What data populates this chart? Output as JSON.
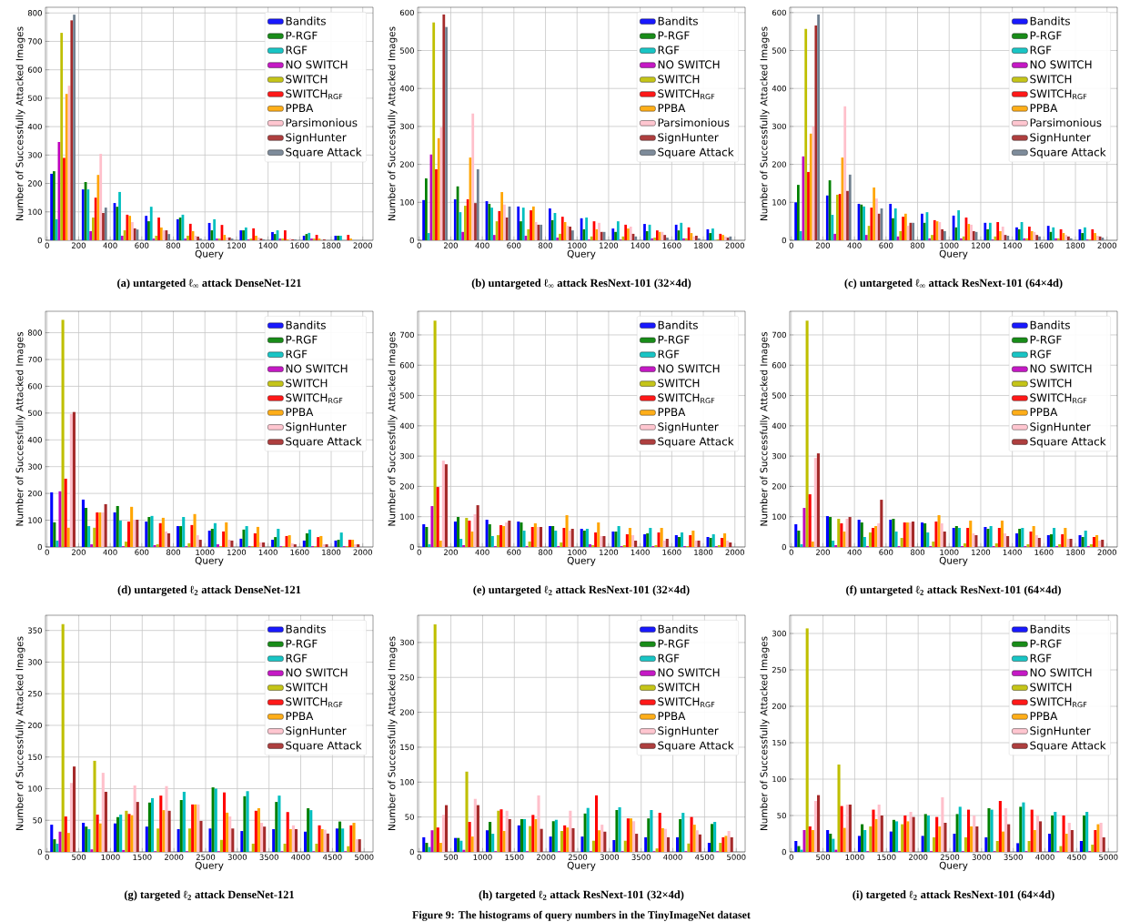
{
  "chart_data": [
    {
      "type": "histogram",
      "title": "(a) untargeted ℓ$_{∞}$ attack DenseNet-121",
      "xlabel": "Query",
      "ylabel": "Number of Successfully Attacked Images",
      "bins": [
        0,
        200,
        400,
        600,
        800,
        1000,
        1200,
        1400,
        1600,
        1800,
        2000
      ],
      "xlim": [
        -10,
        2065
      ],
      "ylim": [
        0,
        820
      ],
      "xticks": [
        0,
        200,
        400,
        600,
        800,
        1000,
        1200,
        1400,
        1600,
        1800,
        2000
      ],
      "yticks": [
        0,
        100,
        200,
        300,
        400,
        500,
        600,
        700,
        800
      ],
      "grid": true,
      "legend": "top right",
      "series": [
        {
          "name": "Bandits",
          "color": "#0000ff",
          "values": [
            234,
            179,
            131,
            86,
            74,
            61,
            35,
            29,
            16,
            16
          ]
        },
        {
          "name": "P-RGF",
          "color": "#008000",
          "values": [
            243,
            205,
            118,
            67,
            80,
            35,
            35,
            22,
            22,
            16
          ]
        },
        {
          "name": "RGF",
          "color": "#00bfbf",
          "values": [
            74,
            179,
            170,
            118,
            90,
            74,
            45,
            35,
            26,
            16
          ]
        },
        {
          "name": "NO SWITCH",
          "color": "#bf00bf",
          "values": [
            346,
            32,
            16,
            6,
            6,
            6,
            3,
            6,
            6,
            0
          ]
        },
        {
          "name": "SWITCH",
          "color": "#bfbf00",
          "values": [
            730,
            80,
            35,
            16,
            16,
            6,
            6,
            6,
            6,
            0
          ]
        },
        {
          "name": "SWITCH$_{RGF}$",
          "color": "#ff0000",
          "values": [
            290,
            150,
            90,
            80,
            58,
            54,
            42,
            35,
            19,
            19
          ]
        },
        {
          "name": "PPBA",
          "color": "#ffa500",
          "values": [
            515,
            230,
            86,
            45,
            32,
            19,
            16,
            3,
            6,
            6
          ]
        },
        {
          "name": "Parsimonious",
          "color": "#ffc0cb",
          "values": [
            544,
            304,
            64,
            35,
            16,
            10,
            10,
            6,
            null,
            0
          ]
        },
        {
          "name": "SignHunter",
          "color": "#a52a2a",
          "values": [
            774,
            96,
            42,
            35,
            13,
            10,
            6,
            3,
            3,
            0
          ]
        },
        {
          "name": "Square Attack",
          "color": "#708090",
          "values": [
            794,
            115,
            38,
            22,
            6,
            6,
            3,
            3,
            0,
            0
          ]
        }
      ]
    },
    {
      "type": "histogram",
      "title": "(b) untargeted ℓ$_{∞}$ attack ResNext-101 (32×4d)",
      "xlabel": "Query",
      "ylabel": "Number of Successfully Attacked Images",
      "bins": [
        0,
        200,
        400,
        600,
        800,
        1000,
        1200,
        1400,
        1600,
        1800,
        2000
      ],
      "xlim": [
        -10,
        2065
      ],
      "ylim": [
        0,
        614
      ],
      "xticks": [
        0,
        200,
        400,
        600,
        800,
        1000,
        1200,
        1400,
        1600,
        1800,
        2000
      ],
      "yticks": [
        0,
        100,
        200,
        300,
        400,
        500,
        600
      ],
      "grid": true,
      "legend": "top right",
      "series": [
        {
          "name": "Bandits",
          "color": "#0000ff",
          "values": [
            106,
            108,
            103,
            89,
            84,
            58,
            31,
            43,
            41,
            29
          ]
        },
        {
          "name": "P-RGF",
          "color": "#008000",
          "values": [
            163,
            142,
            96,
            50,
            53,
            29,
            22,
            24,
            26,
            19
          ]
        },
        {
          "name": "RGF",
          "color": "#00bfbf",
          "values": [
            19,
            74,
            86,
            86,
            72,
            60,
            50,
            41,
            46,
            31
          ]
        },
        {
          "name": "NO SWITCH",
          "color": "#bf00bf",
          "values": [
            226,
            22,
            14,
            12,
            7,
            2,
            2,
            5,
            5,
            0
          ]
        },
        {
          "name": "SWITCH",
          "color": "#bfbf00",
          "values": [
            574,
            91,
            50,
            29,
            17,
            10,
            10,
            7,
            5,
            2
          ]
        },
        {
          "name": "SWITCH$_{RGF}$",
          "color": "#ff0000",
          "values": [
            187,
            108,
            77,
            79,
            62,
            50,
            41,
            26,
            34,
            17
          ]
        },
        {
          "name": "PPBA",
          "color": "#ffa500",
          "values": [
            269,
            218,
            127,
            89,
            48,
            29,
            31,
            22,
            19,
            14
          ]
        },
        {
          "name": "Parsimonious",
          "color": "#ffc0cb",
          "values": [
            298,
            334,
            94,
            48,
            38,
            46,
            36,
            22,
            10,
            10
          ]
        },
        {
          "name": "SignHunter",
          "color": "#a52a2a",
          "values": [
            595,
            98,
            60,
            41,
            36,
            22,
            17,
            14,
            12,
            7
          ]
        },
        {
          "name": "Square Attack",
          "color": "#708090",
          "values": [
            562,
            187,
            89,
            41,
            26,
            22,
            10,
            7,
            5,
            10
          ]
        }
      ]
    },
    {
      "type": "histogram",
      "title": "(c) untargeted ℓ$_{∞}$ attack ResNext-101 (64×4d)",
      "xlabel": "Query",
      "ylabel": "Number of Successfully Attacked Images",
      "bins": [
        0,
        200,
        400,
        600,
        800,
        1000,
        1200,
        1400,
        1600,
        1800,
        2000
      ],
      "xlim": [
        -10,
        2065
      ],
      "ylim": [
        0,
        614
      ],
      "xticks": [
        0,
        200,
        400,
        600,
        800,
        1000,
        1200,
        1400,
        1600,
        1800,
        2000
      ],
      "yticks": [
        0,
        100,
        200,
        300,
        400,
        500,
        600
      ],
      "grid": true,
      "legend": "top right",
      "series": [
        {
          "name": "Bandits",
          "color": "#0000ff",
          "values": [
            100,
            118,
            96,
            96,
            70,
            65,
            46,
            34,
            38,
            29
          ]
        },
        {
          "name": "P-RGF",
          "color": "#008000",
          "values": [
            146,
            158,
            94,
            58,
            46,
            34,
            29,
            29,
            22,
            19
          ]
        },
        {
          "name": "RGF",
          "color": "#00bfbf",
          "values": [
            24,
            67,
            89,
            84,
            74,
            79,
            46,
            48,
            34,
            34
          ]
        },
        {
          "name": "NO SWITCH",
          "color": "#bf00bf",
          "values": [
            221,
            17,
            14,
            10,
            5,
            5,
            2,
            5,
            5,
            2
          ]
        },
        {
          "name": "SWITCH",
          "color": "#bfbf00",
          "values": [
            557,
            120,
            38,
            24,
            14,
            10,
            10,
            5,
            5,
            2
          ]
        },
        {
          "name": "SWITCH$_{RGF}$",
          "color": "#ff0000",
          "values": [
            180,
            122,
            86,
            62,
            53,
            60,
            48,
            36,
            29,
            29
          ]
        },
        {
          "name": "PPBA",
          "color": "#ffa500",
          "values": [
            281,
            218,
            139,
            70,
            50,
            43,
            24,
            24,
            19,
            19
          ]
        },
        {
          "name": "Parsimonious",
          "color": "#ffc0cb",
          "values": [
            300,
            353,
            110,
            38,
            48,
            41,
            36,
            22,
            14,
            12
          ]
        },
        {
          "name": "SignHunter",
          "color": "#a52a2a",
          "values": [
            566,
            130,
            70,
            46,
            29,
            24,
            14,
            14,
            10,
            10
          ]
        },
        {
          "name": "Square Attack",
          "color": "#708090",
          "values": [
            595,
            173,
            84,
            46,
            24,
            22,
            12,
            10,
            5,
            7
          ]
        }
      ]
    },
    {
      "type": "histogram",
      "title": "(d) untargeted ℓ$_{2}$ attack DenseNet-121",
      "xlabel": "Query",
      "ylabel": "Number of Successfully Attacked Images",
      "bins": [
        0,
        200,
        400,
        600,
        800,
        1000,
        1200,
        1400,
        1600,
        1800,
        2000
      ],
      "xlim": [
        -10,
        2065
      ],
      "ylim": [
        0,
        880
      ],
      "xticks": [
        0,
        200,
        400,
        600,
        800,
        1000,
        1200,
        1400,
        1600,
        1800,
        2000
      ],
      "yticks": [
        0,
        100,
        200,
        300,
        400,
        500,
        600,
        700,
        800
      ],
      "grid": true,
      "legend": "top right",
      "series": [
        {
          "name": "Bandits",
          "color": "#0000ff",
          "values": [
            204,
            177,
            129,
            95,
            78,
            61,
            31,
            27,
            24,
            24
          ]
        },
        {
          "name": "P-RGF",
          "color": "#008000",
          "values": [
            92,
            146,
            153,
            112,
            78,
            68,
            65,
            37,
            51,
            27
          ]
        },
        {
          "name": "RGF",
          "color": "#00bfbf",
          "values": [
            24,
            78,
            99,
            116,
            112,
            89,
            78,
            68,
            65,
            54
          ]
        },
        {
          "name": "NO SWITCH",
          "color": "#bf00bf",
          "values": [
            208,
            10,
            3,
            7,
            3,
            10,
            3,
            3,
            3,
            3
          ]
        },
        {
          "name": "SWITCH",
          "color": "#bfbf00",
          "values": [
            848,
            72,
            20,
            10,
            14,
            3,
            3,
            3,
            3,
            3
          ]
        },
        {
          "name": "SWITCH$_{RGF}$",
          "color": "#ff0000",
          "values": [
            255,
            129,
            95,
            89,
            82,
            58,
            51,
            41,
            37,
            27
          ]
        },
        {
          "name": "PPBA",
          "color": "#ffa500",
          "values": [
            72,
            129,
            150,
            109,
            123,
            92,
            75,
            44,
            41,
            27
          ]
        },
        {
          "name": "SignHunter",
          "color": "#ffc0cb",
          "values": [
            497,
            129,
            102,
            58,
            44,
            27,
            17,
            14,
            10,
            10
          ]
        },
        {
          "name": "Square Attack",
          "color": "#a52a2a",
          "values": [
            504,
            160,
            102,
            51,
            27,
            24,
            17,
            10,
            10,
            10
          ]
        }
      ]
    },
    {
      "type": "histogram",
      "title": "(e) untargeted ℓ$_{2}$ attack ResNext-101 (32×4d)",
      "xlabel": "Query",
      "ylabel": "Number of Successfully Attacked Images",
      "bins": [
        0,
        200,
        400,
        600,
        800,
        1000,
        1200,
        1400,
        1600,
        1800,
        2000
      ],
      "xlim": [
        -10,
        2065
      ],
      "ylim": [
        0,
        778
      ],
      "xticks": [
        0,
        200,
        400,
        600,
        800,
        1000,
        1200,
        1400,
        1600,
        1800,
        2000
      ],
      "yticks": [
        0,
        100,
        200,
        300,
        400,
        500,
        600,
        700
      ],
      "grid": true,
      "legend": "top right",
      "series": [
        {
          "name": "Bandits",
          "color": "#0000ff",
          "values": [
            75,
            84,
            90,
            84,
            69,
            60,
            51,
            42,
            39,
            33
          ]
        },
        {
          "name": "P-RGF",
          "color": "#008000",
          "values": [
            66,
            99,
            75,
            81,
            69,
            54,
            51,
            45,
            33,
            30
          ]
        },
        {
          "name": "RGF",
          "color": "#00bfbf",
          "values": [
            9,
            27,
            36,
            54,
            54,
            60,
            69,
            63,
            48,
            42
          ]
        },
        {
          "name": "NO SWITCH",
          "color": "#bf00bf",
          "values": [
            135,
            6,
            3,
            3,
            3,
            9,
            3,
            3,
            3,
            3
          ]
        },
        {
          "name": "SWITCH",
          "color": "#bfbf00",
          "values": [
            747,
            96,
            39,
            18,
            15,
            6,
            6,
            6,
            3,
            6
          ]
        },
        {
          "name": "SWITCH$_{RGF}$",
          "color": "#ff0000",
          "values": [
            198,
            87,
            72,
            66,
            63,
            48,
            42,
            48,
            39,
            30
          ]
        },
        {
          "name": "PPBA",
          "color": "#ffa500",
          "values": [
            21,
            51,
            69,
            78,
            105,
            81,
            63,
            63,
            54,
            45
          ]
        },
        {
          "name": "SignHunter",
          "color": "#ffc0cb",
          "values": [
            285,
            108,
            81,
            66,
            54,
            36,
            39,
            21,
            21,
            21
          ]
        },
        {
          "name": "Square Attack",
          "color": "#a52a2a",
          "values": [
            273,
            138,
            87,
            66,
            60,
            36,
            21,
            27,
            21,
            15
          ]
        }
      ]
    },
    {
      "type": "histogram",
      "title": "(f) untargeted ℓ$_{2}$ attack ResNext-101 (64×4d)",
      "xlabel": "Query",
      "ylabel": "Number of Successfully Attacked Images",
      "bins": [
        0,
        200,
        400,
        600,
        800,
        1000,
        1200,
        1400,
        1600,
        1800,
        2000
      ],
      "xlim": [
        -10,
        2065
      ],
      "ylim": [
        0,
        778
      ],
      "xticks": [
        0,
        200,
        400,
        600,
        800,
        1000,
        1200,
        1400,
        1600,
        1800,
        2000
      ],
      "yticks": [
        0,
        100,
        200,
        300,
        400,
        500,
        600,
        700
      ],
      "grid": true,
      "legend": "top right",
      "series": [
        {
          "name": "Bandits",
          "color": "#0000ff",
          "values": [
            75,
            102,
            90,
            90,
            81,
            63,
            66,
            45,
            39,
            39
          ]
        },
        {
          "name": "P-RGF",
          "color": "#008000",
          "values": [
            54,
            99,
            81,
            93,
            78,
            69,
            60,
            60,
            42,
            33
          ]
        },
        {
          "name": "RGF",
          "color": "#00bfbf",
          "values": [
            9,
            21,
            33,
            51,
            48,
            63,
            69,
            63,
            63,
            54
          ]
        },
        {
          "name": "NO SWITCH",
          "color": "#bf00bf",
          "values": [
            129,
            6,
            3,
            3,
            3,
            3,
            3,
            3,
            3,
            3
          ]
        },
        {
          "name": "SWITCH",
          "color": "#bfbf00",
          "values": [
            747,
            93,
            48,
            30,
            18,
            12,
            12,
            9,
            9,
            9
          ]
        },
        {
          "name": "SWITCH$_{RGF}$",
          "color": "#ff0000",
          "values": [
            174,
            78,
            63,
            81,
            84,
            63,
            63,
            51,
            42,
            33
          ]
        },
        {
          "name": "PPBA",
          "color": "#ffa500",
          "values": [
            18,
            51,
            69,
            81,
            105,
            87,
            87,
            69,
            63,
            39
          ]
        },
        {
          "name": "SignHunter",
          "color": "#ffc0cb",
          "values": [
            294,
            93,
            78,
            81,
            78,
            45,
            45,
            39,
            27,
            21
          ]
        },
        {
          "name": "Square Attack",
          "color": "#a52a2a",
          "values": [
            309,
            99,
            156,
            84,
            51,
            39,
            36,
            30,
            27,
            24
          ]
        }
      ]
    },
    {
      "type": "histogram",
      "title": "(g) targeted ℓ$_{2}$ attack DenseNet-121",
      "xlabel": "Query",
      "ylabel": "Number of Successfully Attacked Images",
      "bins": [
        0,
        500,
        1000,
        1500,
        2000,
        2500,
        3000,
        3500,
        4000,
        4500,
        5000
      ],
      "xlim": [
        -25,
        5140
      ],
      "ylim": [
        0,
        374
      ],
      "xticks": [
        0,
        500,
        1000,
        1500,
        2000,
        2500,
        3000,
        3500,
        4000,
        4500,
        5000
      ],
      "yticks": [
        0,
        50,
        100,
        150,
        200,
        250,
        300,
        350
      ],
      "grid": true,
      "legend": "top right",
      "series": [
        {
          "name": "Bandits",
          "color": "#0000ff",
          "values": [
            43,
            46,
            45,
            40,
            36,
            37,
            33,
            36,
            32,
            37
          ]
        },
        {
          "name": "P-RGF",
          "color": "#008000",
          "values": [
            20,
            40,
            55,
            78,
            82,
            102,
            88,
            79,
            69,
            48
          ]
        },
        {
          "name": "RGF",
          "color": "#00bfbf",
          "values": [
            13,
            36,
            59,
            85,
            95,
            100,
            96,
            89,
            66,
            37
          ]
        },
        {
          "name": "NO SWITCH",
          "color": "#bf00bf",
          "values": [
            32,
            4,
            3,
            1,
            1,
            1,
            0,
            1,
            1,
            1
          ]
        },
        {
          "name": "SWITCH",
          "color": "#bfbf00",
          "values": [
            360,
            144,
            65,
            37,
            37,
            19,
            13,
            13,
            13,
            9
          ]
        },
        {
          "name": "SWITCH$_{RGF}$",
          "color": "#ff0000",
          "values": [
            56,
            59,
            60,
            89,
            75,
            94,
            65,
            63,
            42,
            42
          ]
        },
        {
          "name": "PPBA",
          "color": "#ffa500",
          "values": [
            30,
            45,
            58,
            66,
            75,
            62,
            69,
            36,
            36,
            46
          ]
        },
        {
          "name": "SignHunter",
          "color": "#ffc0cb",
          "values": [
            109,
            125,
            105,
            104,
            75,
            56,
            46,
            42,
            35,
            20
          ]
        },
        {
          "name": "Square Attack",
          "color": "#a52a2a",
          "values": [
            135,
            95,
            79,
            65,
            49,
            37,
            40,
            36,
            29,
            20
          ]
        }
      ]
    },
    {
      "type": "histogram",
      "title": "(h) targeted ℓ$_{2}$ attack ResNext-101 (32×4d)",
      "xlabel": "Query",
      "ylabel": "Number of Successfully Attacked Images",
      "bins": [
        0,
        500,
        1000,
        1500,
        2000,
        2500,
        3000,
        3500,
        4000,
        4500,
        5000
      ],
      "xlim": [
        -25,
        5140
      ],
      "ylim": [
        0,
        339
      ],
      "xticks": [
        0,
        500,
        1000,
        1500,
        2000,
        2500,
        3000,
        3500,
        4000,
        4500,
        5000
      ],
      "yticks": [
        0,
        50,
        100,
        150,
        200,
        250,
        300
      ],
      "grid": true,
      "legend": "top right",
      "annotations": [
        "Figure 9: The histograms of query numbers in the TinyImageNet dataset"
      ],
      "series": [
        {
          "name": "Bandits",
          "color": "#0000ff",
          "values": [
            21,
            20,
            31,
            38,
            22,
            22,
            17,
            21,
            21,
            13
          ]
        },
        {
          "name": "P-RGF",
          "color": "#008000",
          "values": [
            13,
            20,
            43,
            47,
            44,
            55,
            60,
            48,
            47,
            40
          ]
        },
        {
          "name": "RGF",
          "color": "#00bfbf",
          "values": [
            7,
            16,
            26,
            47,
            46,
            63,
            64,
            60,
            56,
            43
          ]
        },
        {
          "name": "NO SWITCH",
          "color": "#bf00bf",
          "values": [
            31,
            3,
            1,
            1,
            1,
            1,
            1,
            1,
            1,
            1
          ]
        },
        {
          "name": "SWITCH",
          "color": "#bfbf00",
          "values": [
            326,
            115,
            59,
            37,
            30,
            16,
            16,
            5,
            12,
            13
          ]
        },
        {
          "name": "SWITCH$_{RGF}$",
          "color": "#ff0000",
          "values": [
            35,
            43,
            61,
            53,
            38,
            81,
            48,
            56,
            50,
            21
          ]
        },
        {
          "name": "PPBA",
          "color": "#ffa500",
          "values": [
            13,
            22,
            30,
            47,
            35,
            31,
            48,
            34,
            39,
            23
          ]
        },
        {
          "name": "SignHunter",
          "color": "#ffc0cb",
          "values": [
            53,
            76,
            59,
            81,
            59,
            39,
            44,
            33,
            31,
            30
          ]
        },
        {
          "name": "Square Attack",
          "color": "#a52a2a",
          "values": [
            67,
            67,
            47,
            33,
            34,
            29,
            26,
            21,
            25,
            21
          ]
        }
      ]
    },
    {
      "type": "histogram",
      "title": "(i) targeted ℓ$_{2}$ attack ResNext-101 (64×4d)",
      "xlabel": "Query",
      "ylabel": "Number of Successfully Attacked Images",
      "bins": [
        0,
        500,
        1000,
        1500,
        2000,
        2500,
        3000,
        3500,
        4000,
        4500,
        5000
      ],
      "xlim": [
        -25,
        5140
      ],
      "ylim": [
        0,
        325
      ],
      "xticks": [
        0,
        500,
        1000,
        1500,
        2000,
        2500,
        3000,
        3500,
        4000,
        4500,
        5000
      ],
      "yticks": [
        0,
        50,
        100,
        150,
        200,
        250,
        300
      ],
      "grid": true,
      "legend": "top right",
      "series": [
        {
          "name": "Bandits",
          "color": "#0000ff",
          "values": [
            15,
            30,
            22,
            28,
            22,
            25,
            20,
            12,
            25,
            15
          ]
        },
        {
          "name": "P-RGF",
          "color": "#008000",
          "values": [
            8,
            25,
            38,
            44,
            52,
            52,
            60,
            62,
            50,
            50
          ]
        },
        {
          "name": "RGF",
          "color": "#00bfbf",
          "values": [
            3,
            18,
            30,
            42,
            50,
            62,
            58,
            68,
            55,
            55
          ]
        },
        {
          "name": "NO SWITCH",
          "color": "#bf00bf",
          "values": [
            30,
            3,
            1,
            1,
            1,
            1,
            1,
            1,
            1,
            1
          ]
        },
        {
          "name": "SWITCH",
          "color": "#bfbf00",
          "values": [
            307,
            120,
            35,
            38,
            20,
            20,
            15,
            15,
            8,
            10
          ]
        },
        {
          "name": "SWITCH$_{RGF}$",
          "color": "#ff0000",
          "values": [
            35,
            63,
            58,
            50,
            48,
            58,
            70,
            58,
            50,
            30
          ]
        },
        {
          "name": "PPBA",
          "color": "#ffa500",
          "values": [
            30,
            33,
            45,
            42,
            35,
            35,
            28,
            30,
            25,
            38
          ]
        },
        {
          "name": "SignHunter",
          "color": "#ffc0cb",
          "values": [
            70,
            65,
            65,
            55,
            75,
            50,
            60,
            50,
            40,
            40
          ]
        },
        {
          "name": "Square Attack",
          "color": "#a52a2a",
          "values": [
            78,
            65,
            50,
            48,
            40,
            35,
            38,
            42,
            30,
            20
          ]
        }
      ]
    }
  ]
}
